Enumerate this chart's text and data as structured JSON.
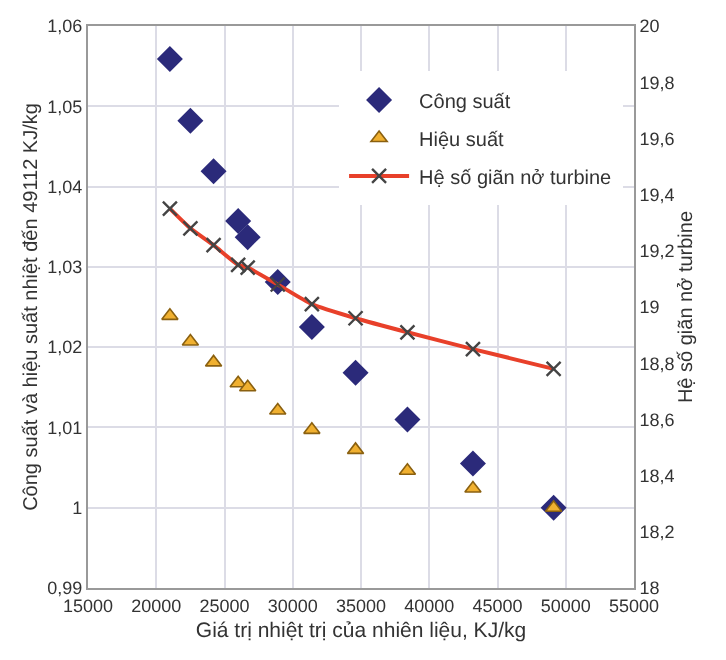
{
  "chart_data": {
    "type": "scatter",
    "xlabel": "Giá trị nhiệt trị của nhiên liệu, KJ/kg",
    "ylabel": "Công suất và hiệu suất nhiệt đến 49112 KJ/kg",
    "y2label": "Hệ số giãn nở turbine",
    "x": [
      21000,
      22500,
      24200,
      26000,
      26700,
      28900,
      31400,
      34600,
      38400,
      43200,
      49112
    ],
    "series": [
      {
        "name": "Công suất",
        "color": "#2b2a7a",
        "marker": "diamond",
        "values": [
          1.0559,
          1.0482,
          1.0419,
          1.0357,
          1.0337,
          1.0281,
          1.0225,
          1.0168,
          1.011,
          1.0055,
          1.0
        ]
      },
      {
        "name": "Hiệu suất",
        "color": "#f0b030",
        "marker": "triangle",
        "values": [
          1.0239,
          1.0207,
          1.0181,
          1.0155,
          1.015,
          1.0121,
          1.0097,
          1.0072,
          1.0046,
          1.0024,
          1.0
        ]
      },
      {
        "name": "Hệ số giãn nở turbine",
        "type": "line",
        "axis": "y2",
        "color": "#e8402a",
        "marker": "cross",
        "values": [
          19.35,
          19.28,
          19.22,
          19.15,
          19.14,
          19.08,
          19.01,
          18.96,
          18.91,
          18.85,
          18.78
        ]
      }
    ],
    "xlim": [
      15000,
      55000
    ],
    "xticks": [
      15000,
      20000,
      25000,
      30000,
      35000,
      40000,
      45000,
      50000,
      55000
    ],
    "ylim": [
      0.99,
      1.06
    ],
    "yticks": [
      {
        "value": 0.99,
        "label": "0,99"
      },
      {
        "value": 1,
        "label": "1"
      },
      {
        "value": 1.01,
        "label": "1,01"
      },
      {
        "value": 1.02,
        "label": "1,02"
      },
      {
        "value": 1.03,
        "label": "1,03"
      },
      {
        "value": 1.04,
        "label": "1,04"
      },
      {
        "value": 1.05,
        "label": "1,05"
      },
      {
        "value": 1.06,
        "label": "1,06"
      }
    ],
    "y2lim": [
      18,
      20
    ],
    "y2ticks": [
      18,
      {
        "value": 18.2,
        "label": "18,2"
      },
      {
        "value": 18.4,
        "label": "18,4"
      },
      {
        "value": 18.6,
        "label": "18,6"
      },
      {
        "value": 18.8,
        "label": "18,8"
      },
      19,
      {
        "value": 19.2,
        "label": "19,2"
      },
      {
        "value": 19.4,
        "label": "19,4"
      },
      {
        "value": 19.6,
        "label": "19,6"
      },
      {
        "value": 19.8,
        "label": "19,8"
      },
      20
    ],
    "grid": true,
    "legend": "top right"
  }
}
